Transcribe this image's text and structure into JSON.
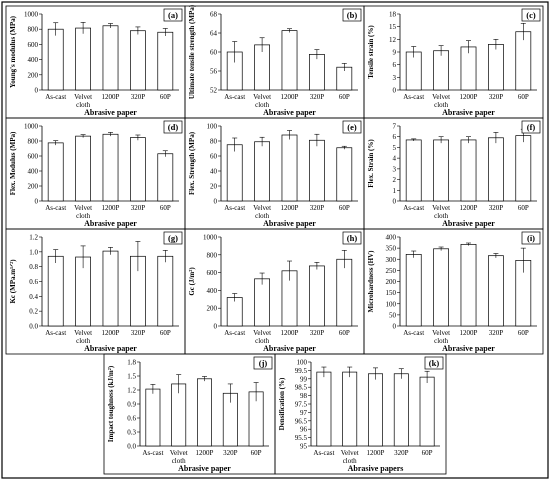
{
  "figure": {
    "panel_count": 11
  },
  "chart_data": [
    {
      "id": "a",
      "panel_label": "(a)",
      "type": "bar",
      "categories": [
        "As-cast",
        "Velvet cloth",
        "1200P",
        "320P",
        "60P"
      ],
      "values": [
        800,
        815,
        845,
        780,
        760
      ],
      "errors": [
        85,
        75,
        30,
        50,
        50
      ],
      "ylabel": "Young's modulus (MPa)",
      "xlabel": "Abrasive paper",
      "ylim": [
        0,
        1000
      ],
      "yticks": [
        0,
        200,
        400,
        600,
        800,
        1000
      ]
    },
    {
      "id": "b",
      "panel_label": "(b)",
      "type": "bar",
      "categories": [
        "As-cast",
        "Velvet cloth",
        "1200P",
        "320P",
        "60P"
      ],
      "values": [
        60.0,
        61.5,
        64.5,
        59.5,
        56.8
      ],
      "errors": [
        2.2,
        1.5,
        0.4,
        1.0,
        0.8
      ],
      "ylabel": "Ultimate tensile strength (MPa)",
      "xlabel": "Abrasive paper",
      "ylim": [
        52,
        68
      ],
      "yticks": [
        52,
        56,
        60,
        64,
        68
      ]
    },
    {
      "id": "c",
      "panel_label": "(c)",
      "type": "bar",
      "categories": [
        "As-cast",
        "Velvet cloth",
        "1200P",
        "320P",
        "60P"
      ],
      "values": [
        9.0,
        9.3,
        10.2,
        10.8,
        13.8
      ],
      "errors": [
        1.3,
        1.2,
        1.5,
        1.2,
        2.0
      ],
      "ylabel": "Tensile strain (%)",
      "xlabel": "Abrasive paper",
      "ylim": [
        0,
        18
      ],
      "yticks": [
        0,
        3,
        6,
        9,
        12,
        15,
        18
      ]
    },
    {
      "id": "d",
      "panel_label": "(d)",
      "type": "bar",
      "categories": [
        "As-cast",
        "Velvet cloth",
        "1200P",
        "320P",
        "60P"
      ],
      "values": [
        775,
        865,
        890,
        845,
        630
      ],
      "errors": [
        30,
        20,
        25,
        35,
        40
      ],
      "ylabel": "Flex. Modulus (MPa)",
      "xlabel": "Abrasive paper",
      "ylim": [
        0,
        1000
      ],
      "yticks": [
        0,
        200,
        400,
        600,
        800,
        1000
      ]
    },
    {
      "id": "e",
      "panel_label": "(e)",
      "type": "bar",
      "categories": [
        "As-cast",
        "Velvet cloth",
        "1200P",
        "320P",
        "60P"
      ],
      "values": [
        75,
        79,
        88,
        81,
        71
      ],
      "errors": [
        9,
        6,
        6,
        8,
        2
      ],
      "ylabel": "Flex. Strength (MPa)",
      "xlabel": "Abrasive paper",
      "ylim": [
        0,
        100
      ],
      "yticks": [
        0,
        20,
        40,
        60,
        80,
        100
      ]
    },
    {
      "id": "f",
      "panel_label": "(f)",
      "type": "bar",
      "categories": [
        "As-cast",
        "Velvet cloth",
        "1200P",
        "320P",
        "60P"
      ],
      "values": [
        5.7,
        5.7,
        5.7,
        5.9,
        6.1
      ],
      "errors": [
        0.1,
        0.3,
        0.3,
        0.5,
        0.6
      ],
      "ylabel": "Flex. Strain (%)",
      "xlabel": "Abrasive paper",
      "ylim": [
        0,
        7
      ],
      "yticks": [
        0,
        1,
        2,
        3,
        4,
        5,
        6,
        7
      ]
    },
    {
      "id": "g",
      "panel_label": "(g)",
      "type": "bar",
      "categories": [
        "As-cast",
        "Velvet cloth",
        "1200P",
        "320P",
        "60P"
      ],
      "values": [
        0.94,
        0.93,
        1.01,
        0.94,
        0.94
      ],
      "errors": [
        0.09,
        0.15,
        0.05,
        0.2,
        0.08
      ],
      "ylabel": "Kc (MPa.m¹ᐟ²)",
      "xlabel": "Abrasive paper",
      "ylim": [
        0,
        1.2
      ],
      "yticks": [
        "0.0",
        "0.2",
        "0.4",
        "0.6",
        "0.8",
        "1.0",
        "1.2"
      ]
    },
    {
      "id": "h",
      "panel_label": "(h)",
      "type": "bar",
      "categories": [
        "As-cast",
        "Velvet cloth",
        "1200P",
        "320P",
        "60P"
      ],
      "values": [
        320,
        530,
        620,
        675,
        750
      ],
      "errors": [
        45,
        65,
        110,
        40,
        100
      ],
      "ylabel": "Gc (J/m²)",
      "xlabel": "Abrasive paper",
      "ylim": [
        0,
        1000
      ],
      "yticks": [
        0,
        200,
        400,
        600,
        800,
        1000
      ]
    },
    {
      "id": "i",
      "panel_label": "(i)",
      "type": "bar",
      "categories": [
        "As-cast",
        "Velvet cloth",
        "1200P",
        "320P",
        "60P"
      ],
      "values": [
        322,
        347,
        367,
        316,
        295
      ],
      "errors": [
        15,
        8,
        6,
        10,
        55
      ],
      "ylabel": "Microhardness (HV)",
      "xlabel": "Abrasive paper",
      "ylim": [
        0,
        400
      ],
      "yticks": [
        0,
        50,
        100,
        150,
        200,
        250,
        300,
        350,
        400
      ]
    },
    {
      "id": "j",
      "panel_label": "(j)",
      "type": "bar",
      "categories": [
        "As-cast",
        "Velvet cloth",
        "1200P",
        "320P",
        "60P"
      ],
      "values": [
        1.22,
        1.33,
        1.44,
        1.13,
        1.16
      ],
      "errors": [
        0.1,
        0.2,
        0.05,
        0.2,
        0.2
      ],
      "ylabel": "Impact toughness (kJ/m²)",
      "xlabel": "Abrasive paper",
      "ylim": [
        0,
        1.8
      ],
      "yticks": [
        "0.0",
        "0.3",
        "0.6",
        "0.9",
        "1.2",
        "1.5",
        "1.8"
      ]
    },
    {
      "id": "k",
      "panel_label": "(k)",
      "type": "bar",
      "categories": [
        "As-cast",
        "Velvet cloth",
        "1200P",
        "320P",
        "60P"
      ],
      "values": [
        99.4,
        99.4,
        99.3,
        99.3,
        99.1
      ],
      "errors": [
        0.3,
        0.3,
        0.35,
        0.3,
        0.35
      ],
      "ylabel": "Densification (%)",
      "xlabel": "Abrasive papers",
      "ylim": [
        95,
        100
      ],
      "yticks": [
        95,
        95.5,
        96,
        96.5,
        97,
        97.5,
        98,
        98.5,
        99,
        99.5,
        100
      ]
    }
  ]
}
